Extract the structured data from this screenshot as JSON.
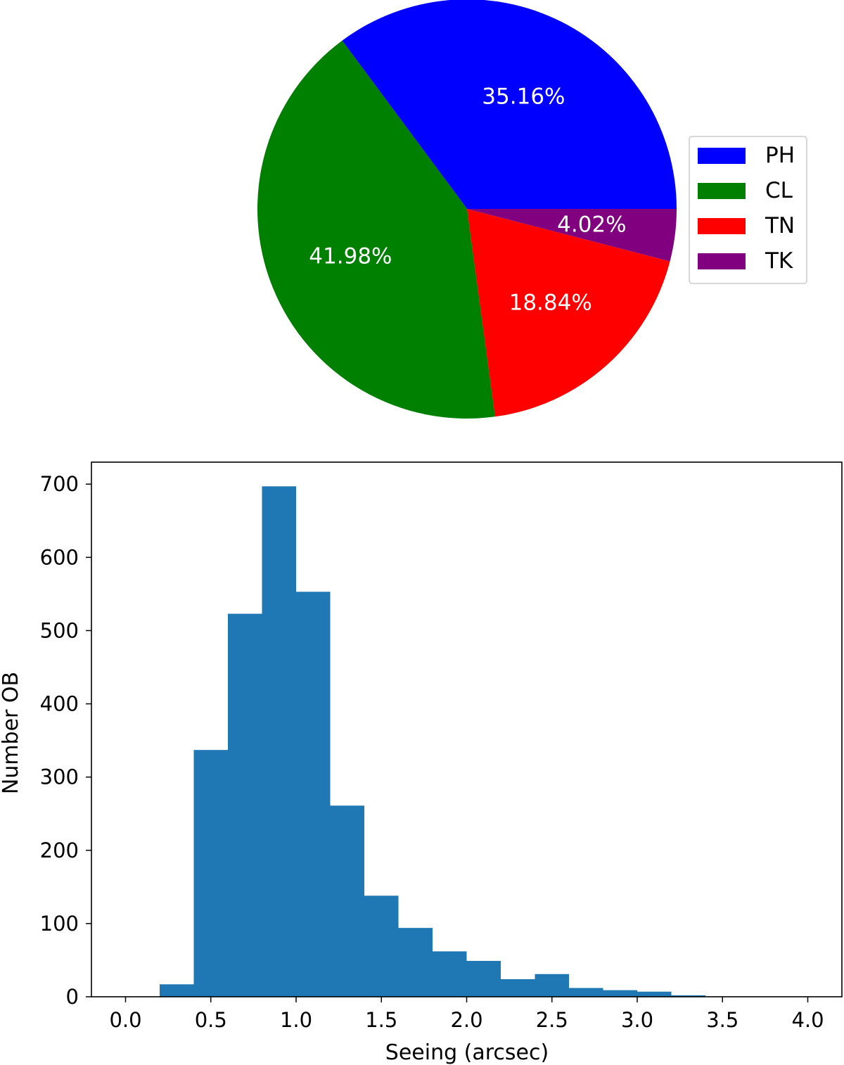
{
  "chart_data": [
    {
      "type": "pie",
      "start_angle_deg": 0,
      "direction": "counterclockwise",
      "slices": [
        {
          "label": "PH",
          "value": 35.16,
          "text": "35.16%",
          "color": "#0000ff"
        },
        {
          "label": "CL",
          "value": 41.98,
          "text": "41.98%",
          "color": "#008000"
        },
        {
          "label": "TN",
          "value": 18.84,
          "text": "18.84%",
          "color": "#ff0000"
        },
        {
          "label": "TK",
          "value": 4.02,
          "text": "4.02%",
          "color": "#800080"
        }
      ],
      "legend": {
        "placement": "right",
        "entries": [
          "PH",
          "CL",
          "TN",
          "TK"
        ]
      }
    },
    {
      "type": "bar",
      "subtype": "histogram",
      "color": "#1f77b4",
      "bin_width": 0.2,
      "bin_edges": [
        0.0,
        0.2,
        0.4,
        0.6,
        0.8,
        1.0,
        1.2,
        1.4,
        1.6,
        1.8,
        2.0,
        2.2,
        2.4,
        2.6,
        2.8,
        3.0,
        3.2,
        3.4,
        3.6,
        3.8,
        4.0
      ],
      "values": [
        0,
        17,
        337,
        523,
        697,
        553,
        261,
        138,
        94,
        62,
        49,
        24,
        31,
        12,
        9,
        7,
        2,
        0,
        0,
        0
      ],
      "xlabel": "Seeing (arcsec)",
      "ylabel": "Number OB",
      "xlim": [
        -0.2,
        4.2
      ],
      "ylim": [
        0,
        730
      ],
      "xticks": [
        0.0,
        0.5,
        1.0,
        1.5,
        2.0,
        2.5,
        3.0,
        3.5,
        4.0
      ],
      "xtick_labels": [
        "0.0",
        "0.5",
        "1.0",
        "1.5",
        "2.0",
        "2.5",
        "3.0",
        "3.5",
        "4.0"
      ],
      "yticks": [
        0,
        100,
        200,
        300,
        400,
        500,
        600,
        700
      ],
      "ytick_labels": [
        "0",
        "100",
        "200",
        "300",
        "400",
        "500",
        "600",
        "700"
      ],
      "grid": false
    }
  ]
}
